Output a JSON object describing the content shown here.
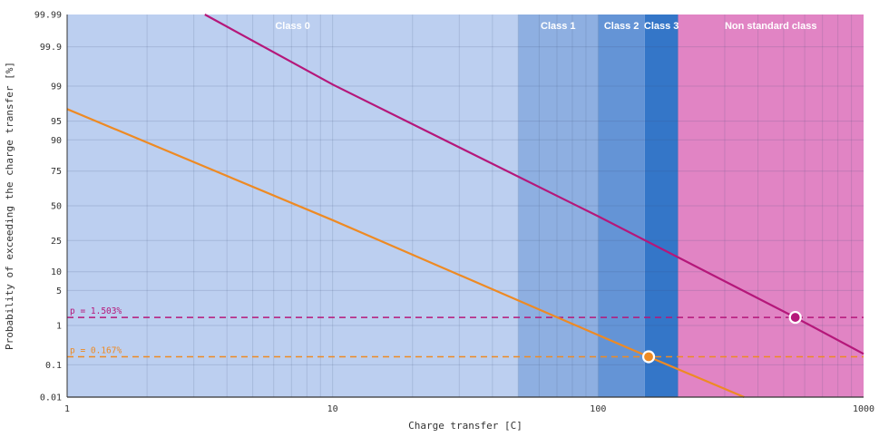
{
  "chart_data": {
    "type": "line",
    "xscale": "log",
    "yscale": "probability",
    "xlim": [
      1,
      1000
    ],
    "ylim": [
      0.01,
      99.99
    ],
    "xlabel": "Charge transfer [C]",
    "ylabel": "Probability of exceeding the charge transfer [%]",
    "x_ticks": [
      {
        "value": 1,
        "label": "1"
      },
      {
        "value": 10,
        "label": "10"
      },
      {
        "value": 100,
        "label": "100"
      },
      {
        "value": 1000,
        "label": "1000"
      }
    ],
    "y_ticks": [
      {
        "value": 99.99,
        "label": "99.99"
      },
      {
        "value": 99.9,
        "label": "99.9"
      },
      {
        "value": 99,
        "label": "99"
      },
      {
        "value": 95,
        "label": "95"
      },
      {
        "value": 90,
        "label": "90"
      },
      {
        "value": 75,
        "label": "75"
      },
      {
        "value": 50,
        "label": "50"
      },
      {
        "value": 25,
        "label": "25"
      },
      {
        "value": 10,
        "label": "10"
      },
      {
        "value": 5,
        "label": "5"
      },
      {
        "value": 1,
        "label": "1"
      },
      {
        "value": 0.1,
        "label": "0.1"
      },
      {
        "value": 0.01,
        "label": "0.01"
      }
    ],
    "grid": true,
    "class_bands": [
      {
        "label": "Class 0",
        "from": 1,
        "to": 50,
        "color": "#bccff0"
      },
      {
        "label": "Class 1",
        "from": 50,
        "to": 100,
        "color": "#8eafe1"
      },
      {
        "label": "Class 2",
        "from": 100,
        "to": 150,
        "color": "#6494d6"
      },
      {
        "label": "Class 3",
        "from": 150,
        "to": 200,
        "color": "#3476c8"
      },
      {
        "label": "Non standard class",
        "from": 200,
        "to": 1000,
        "color": "#e184c4"
      }
    ],
    "series": [
      {
        "color": "#b5177a",
        "points": [
          [
            3.3,
            99.99
          ],
          [
            10,
            99.08
          ],
          [
            100,
            42
          ],
          [
            553,
            1.503
          ],
          [
            1000,
            0.2
          ]
        ],
        "threshold": {
          "label": "p = 1.503%",
          "value": 1.503
        },
        "marker": [
          553,
          1.503
        ]
      },
      {
        "color": "#ee8a23",
        "points": [
          [
            1,
            97
          ],
          [
            10,
            39
          ],
          [
            100,
            0.6
          ],
          [
            155,
            0.167
          ],
          [
            355,
            0.01
          ]
        ],
        "threshold": {
          "label": "p = 0.167%",
          "value": 0.167
        },
        "marker": [
          155,
          0.167
        ]
      }
    ]
  }
}
